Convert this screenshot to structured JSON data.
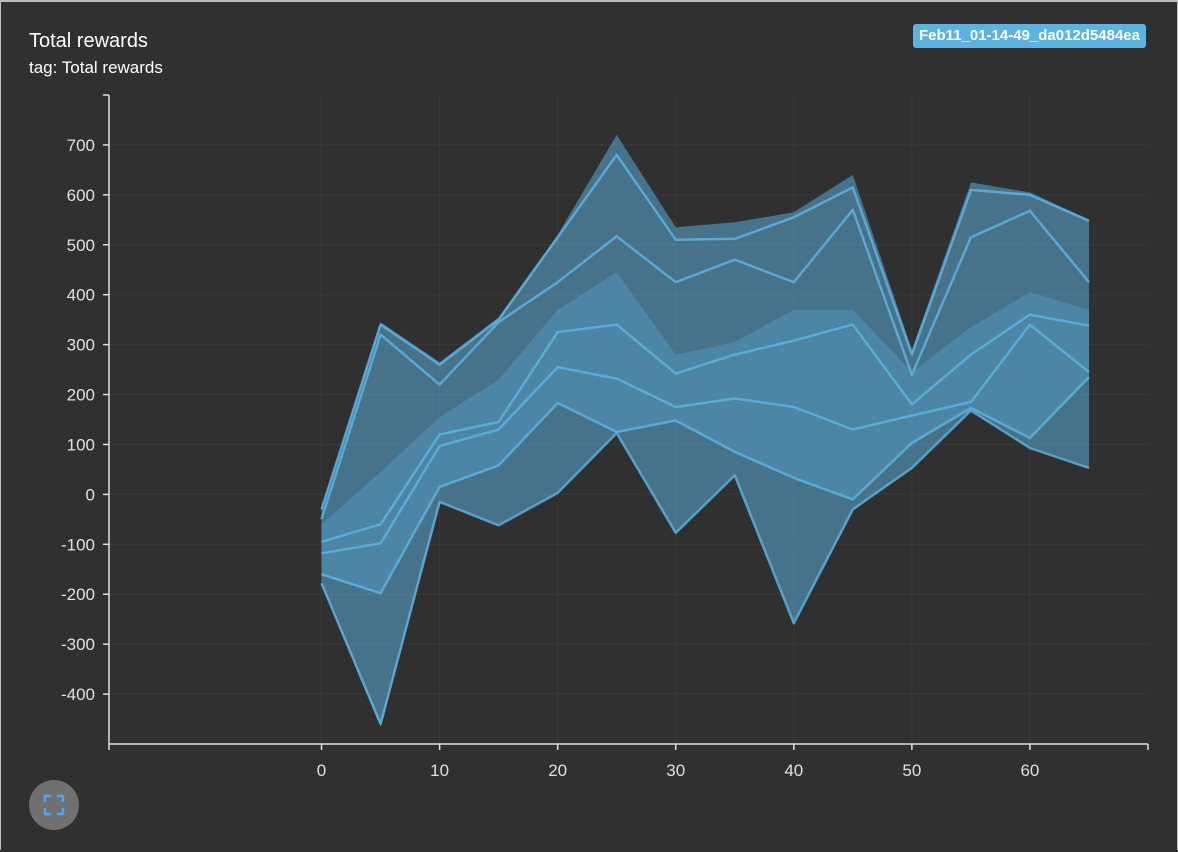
{
  "card": {
    "title": "Total rewards",
    "subtitle": "tag: Total rewards",
    "run_label": "Feb11_01-14-49_da012d5484ea"
  },
  "expand_button": {
    "icon": "expand-icon"
  },
  "colors": {
    "background": "#303030",
    "series": "#5eb2e0",
    "band": "#5aa9d6",
    "axis": "#e0e0e0",
    "grid": "#3a3a3a"
  },
  "chart_data": {
    "type": "area",
    "title": "",
    "xlabel": "",
    "ylabel": "",
    "xlim": [
      -18,
      70
    ],
    "ylim": [
      -500,
      800
    ],
    "xticks": [
      0,
      10,
      20,
      30,
      40,
      50,
      60
    ],
    "yticks": [
      -400,
      -300,
      -200,
      -100,
      0,
      100,
      200,
      300,
      400,
      500,
      600,
      700
    ],
    "x": [
      0,
      5,
      10,
      15,
      20,
      25,
      30,
      35,
      40,
      45,
      50,
      55,
      60,
      65
    ],
    "bands": [
      {
        "upper": [
          -30,
          345,
          265,
          355,
          520,
          720,
          535,
          545,
          565,
          640,
          290,
          625,
          605,
          550
        ],
        "lower": [
          -180,
          -465,
          -15,
          -60,
          5,
          125,
          -75,
          40,
          -255,
          -30,
          55,
          170,
          95,
          55
        ]
      },
      {
        "upper": [
          -60,
          45,
          155,
          230,
          370,
          445,
          280,
          305,
          370,
          370,
          245,
          335,
          405,
          370
        ],
        "lower": [
          -160,
          -200,
          15,
          60,
          185,
          125,
          150,
          85,
          35,
          -10,
          105,
          175,
          115,
          235
        ]
      }
    ],
    "series": [
      {
        "values": [
          -30,
          340,
          260,
          350,
          515,
          680,
          510,
          512,
          555,
          615,
          280,
          610,
          600,
          548
        ]
      },
      {
        "values": [
          -50,
          320,
          220,
          345,
          425,
          517,
          425,
          470,
          425,
          570,
          240,
          515,
          568,
          425
        ]
      },
      {
        "values": [
          -95,
          -60,
          120,
          145,
          325,
          340,
          242,
          280,
          308,
          340,
          180,
          280,
          360,
          338
        ]
      },
      {
        "values": [
          -118,
          -98,
          97,
          130,
          255,
          232,
          175,
          192,
          175,
          130,
          158,
          185,
          340,
          245
        ]
      },
      {
        "values": [
          -160,
          -198,
          15,
          58,
          183,
          125,
          148,
          85,
          33,
          -10,
          103,
          173,
          113,
          235
        ]
      },
      {
        "values": [
          -178,
          -460,
          -15,
          -62,
          3,
          123,
          -77,
          38,
          -258,
          -30,
          53,
          168,
          93,
          53
        ]
      }
    ]
  }
}
